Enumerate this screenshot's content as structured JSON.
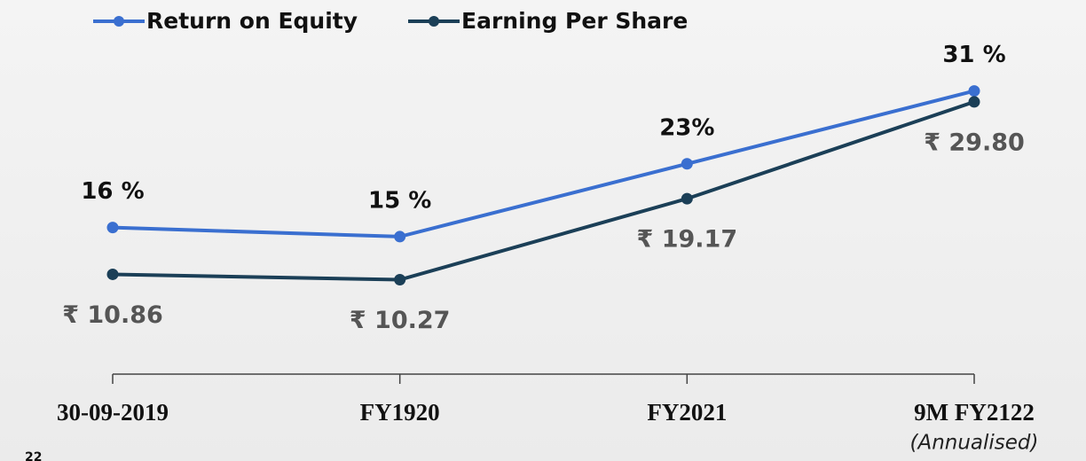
{
  "chart_data": {
    "type": "line",
    "categories": [
      "30-09-2019",
      "FY1920",
      "FY2021",
      "9M FY2122"
    ],
    "category_note": "(Annualised)",
    "series": [
      {
        "name": "Return on Equity",
        "color": "#3a6fd0",
        "values": [
          16,
          15,
          23,
          31
        ],
        "value_labels": [
          "16 %",
          "15 %",
          "23%",
          "31 %"
        ]
      },
      {
        "name": "Earning Per Share",
        "color": "#1b3f57",
        "axis": "y2",
        "values": [
          10.86,
          10.27,
          19.17,
          29.8
        ],
        "value_labels": [
          "₹ 10.86",
          "₹ 10.27",
          "₹ 19.17",
          "₹ 29.80"
        ]
      }
    ],
    "ylim": [
      0,
      35
    ],
    "y2lim": [
      0,
      35
    ],
    "page_number": "22"
  }
}
